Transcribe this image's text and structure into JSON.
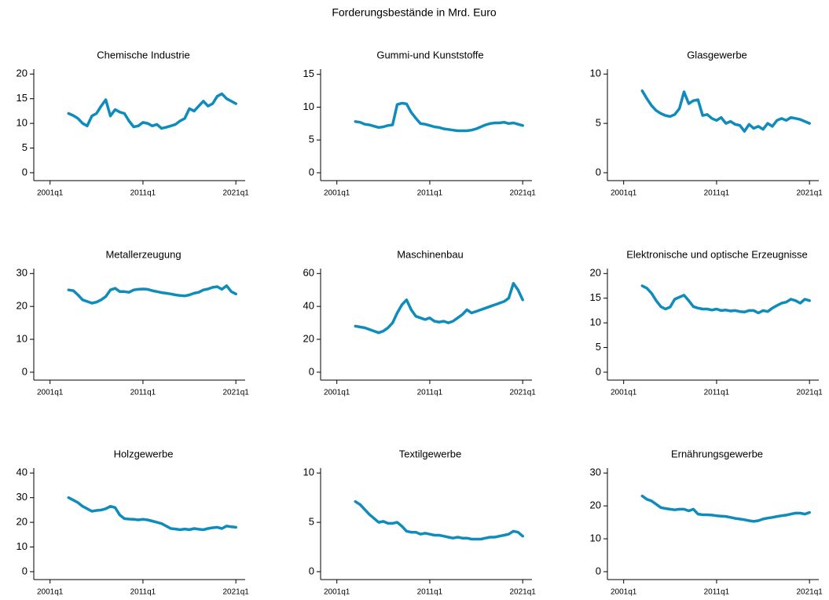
{
  "title": "Forderungsbestände in Mrd. Euro",
  "chart_data": [
    {
      "type": "line",
      "title": "Chemische Industrie",
      "color": "#0f8cbb",
      "x": [
        "2003q1",
        "2003q3",
        "2004q1",
        "2004q3",
        "2005q1",
        "2005q3",
        "2006q1",
        "2006q3",
        "2007q1",
        "2007q3",
        "2008q1",
        "2008q3",
        "2009q1",
        "2009q3",
        "2010q1",
        "2010q3",
        "2011q1",
        "2011q3",
        "2012q1",
        "2012q3",
        "2013q1",
        "2013q3",
        "2014q1",
        "2014q3",
        "2015q1",
        "2015q3",
        "2016q1",
        "2016q3",
        "2017q1",
        "2017q3",
        "2018q1",
        "2018q3",
        "2019q1",
        "2019q3",
        "2020q1",
        "2020q3",
        "2021q1"
      ],
      "values": [
        12.0,
        11.6,
        11.0,
        10.0,
        9.5,
        11.5,
        12.0,
        13.5,
        14.8,
        11.5,
        12.8,
        12.3,
        12.0,
        10.5,
        9.3,
        9.5,
        10.2,
        10.0,
        9.5,
        9.8,
        9.0,
        9.2,
        9.5,
        9.8,
        10.5,
        11.0,
        13.0,
        12.5,
        13.5,
        14.5,
        13.5,
        14.0,
        15.5,
        16.0,
        15.0,
        14.5,
        14.0
      ],
      "xlim": [
        "1999q2",
        "2022q1"
      ],
      "xticks": [
        "2001q1",
        "2011q1",
        "2021q1"
      ],
      "ylim": [
        -1.6,
        21
      ],
      "yticks": [
        0,
        5,
        10,
        15,
        20
      ]
    },
    {
      "type": "line",
      "title": "Gummi-und Kunststoffe",
      "color": "#0f8cbb",
      "x": [
        "2003q1",
        "2003q3",
        "2004q1",
        "2004q3",
        "2005q1",
        "2005q3",
        "2006q1",
        "2006q3",
        "2007q1",
        "2007q3",
        "2008q1",
        "2008q3",
        "2009q1",
        "2009q3",
        "2010q1",
        "2010q3",
        "2011q1",
        "2011q3",
        "2012q1",
        "2012q3",
        "2013q1",
        "2013q3",
        "2014q1",
        "2014q3",
        "2015q1",
        "2015q3",
        "2016q1",
        "2016q3",
        "2017q1",
        "2017q3",
        "2018q1",
        "2018q3",
        "2019q1",
        "2019q3",
        "2020q1",
        "2020q3",
        "2021q1"
      ],
      "values": [
        7.8,
        7.7,
        7.4,
        7.3,
        7.1,
        6.9,
        7.0,
        7.2,
        7.3,
        10.4,
        10.6,
        10.5,
        9.2,
        8.3,
        7.5,
        7.4,
        7.2,
        7.0,
        6.9,
        6.7,
        6.6,
        6.5,
        6.4,
        6.4,
        6.4,
        6.5,
        6.7,
        7.0,
        7.3,
        7.5,
        7.6,
        7.6,
        7.7,
        7.5,
        7.6,
        7.4,
        7.2
      ],
      "xlim": [
        "1999q2",
        "2022q1"
      ],
      "xticks": [
        "2001q1",
        "2011q1",
        "2021q1"
      ],
      "ylim": [
        -1.2,
        15.8
      ],
      "yticks": [
        0,
        5,
        10,
        15
      ]
    },
    {
      "type": "line",
      "title": "Glasgewerbe",
      "color": "#0f8cbb",
      "x": [
        "2003q1",
        "2003q3",
        "2004q1",
        "2004q3",
        "2005q1",
        "2005q3",
        "2006q1",
        "2006q3",
        "2007q1",
        "2007q3",
        "2008q1",
        "2008q3",
        "2009q1",
        "2009q3",
        "2010q1",
        "2010q3",
        "2011q1",
        "2011q3",
        "2012q1",
        "2012q3",
        "2013q1",
        "2013q3",
        "2014q1",
        "2014q3",
        "2015q1",
        "2015q3",
        "2016q1",
        "2016q3",
        "2017q1",
        "2017q3",
        "2018q1",
        "2018q3",
        "2019q1",
        "2019q3",
        "2020q1",
        "2020q3",
        "2021q1"
      ],
      "values": [
        8.3,
        7.5,
        6.8,
        6.3,
        6.0,
        5.8,
        5.7,
        5.9,
        6.5,
        8.2,
        7.0,
        7.3,
        7.4,
        5.8,
        5.9,
        5.5,
        5.3,
        5.6,
        5.0,
        5.2,
        4.9,
        4.8,
        4.2,
        4.9,
        4.5,
        4.7,
        4.4,
        5.0,
        4.7,
        5.3,
        5.5,
        5.3,
        5.6,
        5.5,
        5.4,
        5.2,
        5.0
      ],
      "xlim": [
        "1999q2",
        "2022q1"
      ],
      "xticks": [
        "2001q1",
        "2011q1",
        "2021q1"
      ],
      "ylim": [
        -0.8,
        10.5
      ],
      "yticks": [
        0,
        5,
        10
      ]
    },
    {
      "type": "line",
      "title": "Metallerzeugung",
      "color": "#0f8cbb",
      "x": [
        "2003q1",
        "2003q3",
        "2004q1",
        "2004q3",
        "2005q1",
        "2005q3",
        "2006q1",
        "2006q3",
        "2007q1",
        "2007q3",
        "2008q1",
        "2008q3",
        "2009q1",
        "2009q3",
        "2010q1",
        "2010q3",
        "2011q1",
        "2011q3",
        "2012q1",
        "2012q3",
        "2013q1",
        "2013q3",
        "2014q1",
        "2014q3",
        "2015q1",
        "2015q3",
        "2016q1",
        "2016q3",
        "2017q1",
        "2017q3",
        "2018q1",
        "2018q3",
        "2019q1",
        "2019q3",
        "2020q1",
        "2020q3",
        "2021q1"
      ],
      "values": [
        25,
        24.8,
        23.5,
        22,
        21.5,
        21,
        21.3,
        22,
        23,
        25,
        25.5,
        24.5,
        24.5,
        24.3,
        25,
        25.2,
        25.3,
        25.2,
        24.8,
        24.5,
        24.2,
        24,
        23.8,
        23.5,
        23.3,
        23.2,
        23.5,
        24,
        24.3,
        25,
        25.3,
        25.8,
        26,
        25.2,
        26.3,
        24.5,
        23.8
      ],
      "xlim": [
        "1999q2",
        "2022q1"
      ],
      "xticks": [
        "2001q1",
        "2011q1",
        "2021q1"
      ],
      "ylim": [
        -2.4,
        31.5
      ],
      "yticks": [
        0,
        10,
        20,
        30
      ]
    },
    {
      "type": "line",
      "title": "Maschinenbau",
      "color": "#0f8cbb",
      "x": [
        "2003q1",
        "2003q3",
        "2004q1",
        "2004q3",
        "2005q1",
        "2005q3",
        "2006q1",
        "2006q3",
        "2007q1",
        "2007q3",
        "2008q1",
        "2008q3",
        "2009q1",
        "2009q3",
        "2010q1",
        "2010q3",
        "2011q1",
        "2011q3",
        "2012q1",
        "2012q3",
        "2013q1",
        "2013q3",
        "2014q1",
        "2014q3",
        "2015q1",
        "2015q3",
        "2016q1",
        "2016q3",
        "2017q1",
        "2017q3",
        "2018q1",
        "2018q3",
        "2019q1",
        "2019q3",
        "2020q1",
        "2020q3",
        "2021q1"
      ],
      "values": [
        28,
        27.5,
        27,
        26,
        25,
        24,
        25,
        27,
        30,
        36,
        41,
        44,
        38,
        34,
        33,
        32,
        33,
        31,
        30.5,
        31,
        30,
        31,
        33,
        35,
        38,
        36,
        37,
        38,
        39,
        40,
        41,
        42,
        43,
        45,
        54,
        50,
        44
      ],
      "xlim": [
        "1999q2",
        "2022q1"
      ],
      "xticks": [
        "2001q1",
        "2011q1",
        "2021q1"
      ],
      "ylim": [
        -4.8,
        63
      ],
      "yticks": [
        0,
        20,
        40,
        60
      ]
    },
    {
      "type": "line",
      "title": "Elektronische und optische Erzeugnisse",
      "color": "#0f8cbb",
      "x": [
        "2003q1",
        "2003q3",
        "2004q1",
        "2004q3",
        "2005q1",
        "2005q3",
        "2006q1",
        "2006q3",
        "2007q1",
        "2007q3",
        "2008q1",
        "2008q3",
        "2009q1",
        "2009q3",
        "2010q1",
        "2010q3",
        "2011q1",
        "2011q3",
        "2012q1",
        "2012q3",
        "2013q1",
        "2013q3",
        "2014q1",
        "2014q3",
        "2015q1",
        "2015q3",
        "2016q1",
        "2016q3",
        "2017q1",
        "2017q3",
        "2018q1",
        "2018q3",
        "2019q1",
        "2019q3",
        "2020q1",
        "2020q3",
        "2021q1"
      ],
      "values": [
        17.5,
        17,
        16,
        14.5,
        13.3,
        12.8,
        13.2,
        14.8,
        15.2,
        15.6,
        14.5,
        13.3,
        13,
        12.8,
        12.8,
        12.6,
        12.8,
        12.5,
        12.6,
        12.4,
        12.5,
        12.3,
        12.2,
        12.5,
        12.5,
        12,
        12.5,
        12.3,
        13,
        13.5,
        14,
        14.2,
        14.8,
        14.5,
        14,
        14.8,
        14.5
      ],
      "xlim": [
        "1999q2",
        "2022q1"
      ],
      "xticks": [
        "2001q1",
        "2011q1",
        "2021q1"
      ],
      "ylim": [
        -1.6,
        21
      ],
      "yticks": [
        0,
        5,
        10,
        15,
        20
      ]
    },
    {
      "type": "line",
      "title": "Holzgewerbe",
      "color": "#0f8cbb",
      "x": [
        "2003q1",
        "2003q3",
        "2004q1",
        "2004q3",
        "2005q1",
        "2005q3",
        "2006q1",
        "2006q3",
        "2007q1",
        "2007q3",
        "2008q1",
        "2008q3",
        "2009q1",
        "2009q3",
        "2010q1",
        "2010q3",
        "2011q1",
        "2011q3",
        "2012q1",
        "2012q3",
        "2013q1",
        "2013q3",
        "2014q1",
        "2014q3",
        "2015q1",
        "2015q3",
        "2016q1",
        "2016q3",
        "2017q1",
        "2017q3",
        "2018q1",
        "2018q3",
        "2019q1",
        "2019q3",
        "2020q1",
        "2020q3",
        "2021q1"
      ],
      "values": [
        30,
        29,
        28,
        26.5,
        25.5,
        24.5,
        24.8,
        25,
        25.5,
        26.5,
        26,
        23,
        21.5,
        21.3,
        21.2,
        21,
        21.2,
        21,
        20.5,
        20,
        19.5,
        18.5,
        17.5,
        17.3,
        17,
        17.3,
        17,
        17.5,
        17.2,
        17,
        17.5,
        17.8,
        18,
        17.5,
        18.5,
        18.2,
        18
      ],
      "xlim": [
        "1999q2",
        "2022q1"
      ],
      "xticks": [
        "2001q1",
        "2011q1",
        "2021q1"
      ],
      "ylim": [
        -3.2,
        42
      ],
      "yticks": [
        0,
        10,
        20,
        30,
        40
      ]
    },
    {
      "type": "line",
      "title": "Textilgewerbe",
      "color": "#0f8cbb",
      "x": [
        "2003q1",
        "2003q3",
        "2004q1",
        "2004q3",
        "2005q1",
        "2005q3",
        "2006q1",
        "2006q3",
        "2007q1",
        "2007q3",
        "2008q1",
        "2008q3",
        "2009q1",
        "2009q3",
        "2010q1",
        "2010q3",
        "2011q1",
        "2011q3",
        "2012q1",
        "2012q3",
        "2013q1",
        "2013q3",
        "2014q1",
        "2014q3",
        "2015q1",
        "2015q3",
        "2016q1",
        "2016q3",
        "2017q1",
        "2017q3",
        "2018q1",
        "2018q3",
        "2019q1",
        "2019q3",
        "2020q1",
        "2020q3",
        "2021q1"
      ],
      "values": [
        7.1,
        6.8,
        6.3,
        5.8,
        5.4,
        5.0,
        5.1,
        4.9,
        4.9,
        5.0,
        4.6,
        4.1,
        4.0,
        4.0,
        3.8,
        3.9,
        3.8,
        3.7,
        3.7,
        3.6,
        3.5,
        3.4,
        3.5,
        3.4,
        3.4,
        3.3,
        3.3,
        3.3,
        3.4,
        3.5,
        3.5,
        3.6,
        3.7,
        3.8,
        4.1,
        4.0,
        3.6
      ],
      "xlim": [
        "1999q2",
        "2022q1"
      ],
      "xticks": [
        "2001q1",
        "2011q1",
        "2021q1"
      ],
      "ylim": [
        -0.8,
        10.5
      ],
      "yticks": [
        0,
        5,
        10
      ]
    },
    {
      "type": "line",
      "title": "Ernährungsgewerbe",
      "color": "#0f8cbb",
      "x": [
        "2003q1",
        "2003q3",
        "2004q1",
        "2004q3",
        "2005q1",
        "2005q3",
        "2006q1",
        "2006q3",
        "2007q1",
        "2007q3",
        "2008q1",
        "2008q3",
        "2009q1",
        "2009q3",
        "2010q1",
        "2010q3",
        "2011q1",
        "2011q3",
        "2012q1",
        "2012q3",
        "2013q1",
        "2013q3",
        "2014q1",
        "2014q3",
        "2015q1",
        "2015q3",
        "2016q1",
        "2016q3",
        "2017q1",
        "2017q3",
        "2018q1",
        "2018q3",
        "2019q1",
        "2019q3",
        "2020q1",
        "2020q3",
        "2021q1"
      ],
      "values": [
        23,
        22,
        21.5,
        20.5,
        19.5,
        19.2,
        19,
        18.8,
        19,
        19,
        18.5,
        19,
        17.5,
        17.3,
        17.3,
        17.2,
        17,
        16.9,
        16.8,
        16.5,
        16.2,
        16,
        15.8,
        15.5,
        15.3,
        15.5,
        16,
        16.3,
        16.5,
        16.8,
        17,
        17.2,
        17.5,
        17.8,
        17.8,
        17.5,
        18
      ],
      "xlim": [
        "1999q2",
        "2022q1"
      ],
      "xticks": [
        "2001q1",
        "2011q1",
        "2021q1"
      ],
      "ylim": [
        -2.4,
        31.5
      ],
      "yticks": [
        0,
        10,
        20,
        30
      ]
    }
  ]
}
